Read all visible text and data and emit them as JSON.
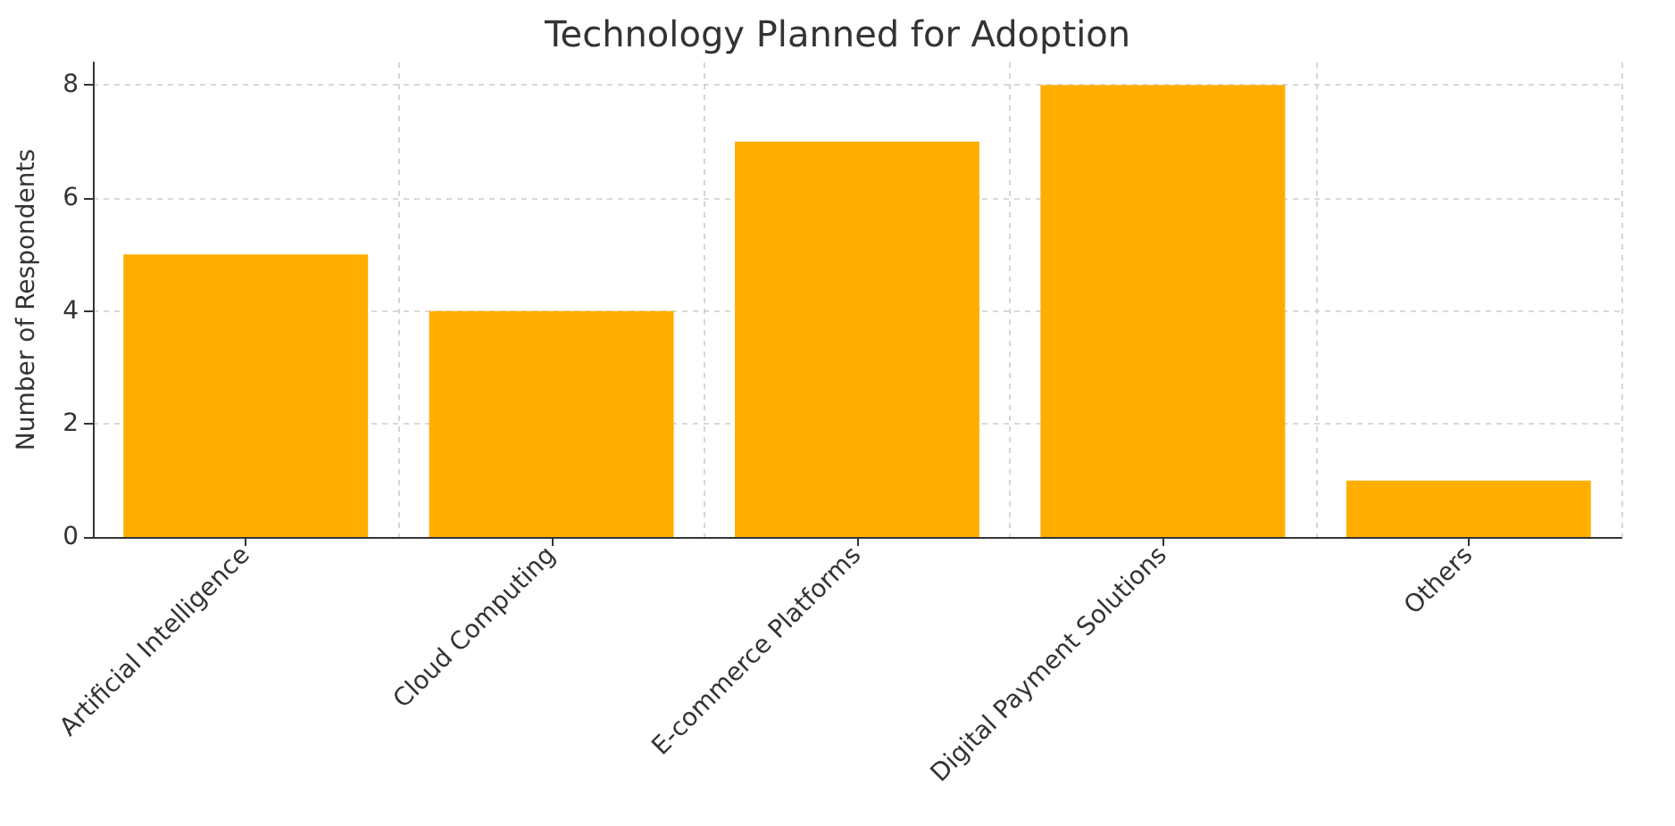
{
  "chart_data": {
    "type": "bar",
    "title": "Technology Planned for Adoption",
    "ylabel": "Number of Respondents",
    "categories": [
      "Artificial Intelligence",
      "Cloud Computing",
      "E-commerce Platforms",
      "Digital Payment Solutions",
      "Others"
    ],
    "values": [
      5,
      4,
      7,
      8,
      1
    ],
    "color": "#ffae00",
    "ylim": [
      0,
      8.4
    ],
    "yticks": [
      0,
      2,
      4,
      6,
      8
    ],
    "grid": true
  }
}
